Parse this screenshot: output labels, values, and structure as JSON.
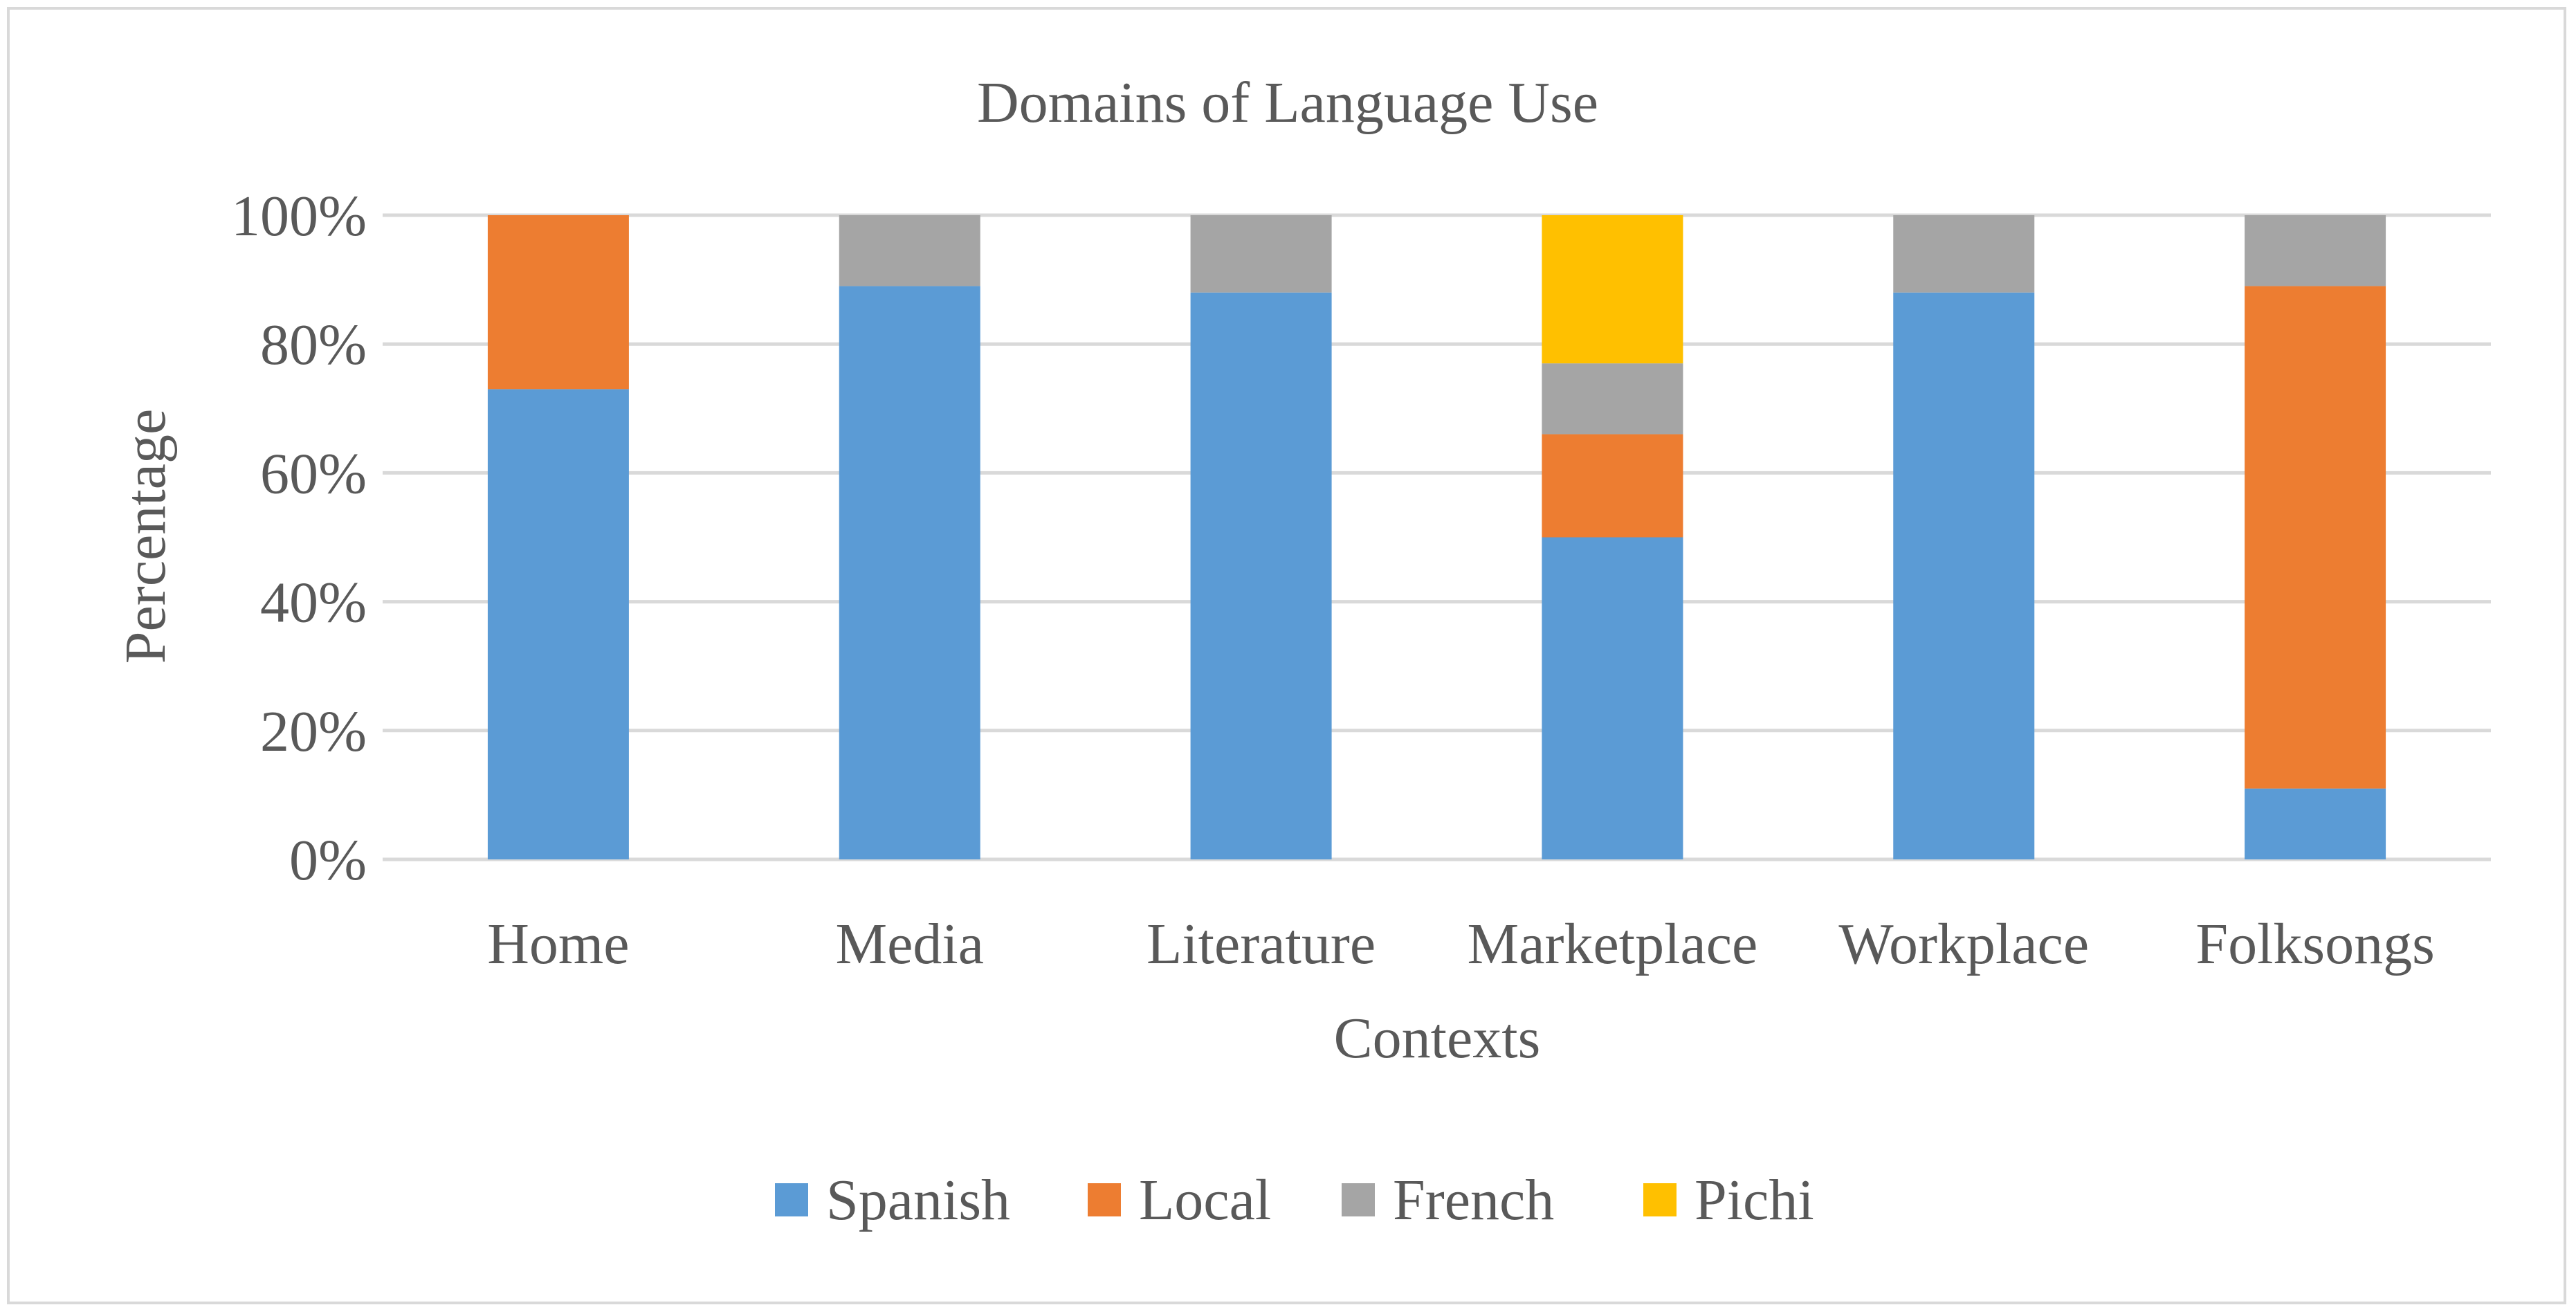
{
  "chart_data": {
    "type": "bar",
    "stacked": true,
    "title": "Domains of Language Use",
    "xlabel": "Contexts",
    "ylabel": "Percentage",
    "categories": [
      "Home",
      "Media",
      "Literature",
      "Marketplace",
      "Workplace",
      "Folksongs"
    ],
    "series": [
      {
        "name": "Spanish",
        "color": "#5b9bd5",
        "values": [
          73,
          89,
          88,
          50,
          88,
          11
        ]
      },
      {
        "name": "Local",
        "color": "#ed7d31",
        "values": [
          27,
          0,
          0,
          16,
          0,
          78
        ]
      },
      {
        "name": "French",
        "color": "#a5a5a5",
        "values": [
          0,
          11,
          12,
          11,
          12,
          11
        ]
      },
      {
        "name": "Pichi",
        "color": "#ffc000",
        "values": [
          0,
          0,
          0,
          23,
          0,
          0
        ]
      }
    ],
    "ylim": [
      0,
      100
    ],
    "yticks": [
      {
        "value": 0,
        "label": "0%"
      },
      {
        "value": 20,
        "label": "20%"
      },
      {
        "value": 40,
        "label": "40%"
      },
      {
        "value": 60,
        "label": "60%"
      },
      {
        "value": 80,
        "label": "80%"
      },
      {
        "value": 100,
        "label": "100%"
      }
    ],
    "grid": true,
    "gridColor": "#d9d9d9",
    "legend_position": "bottom"
  }
}
